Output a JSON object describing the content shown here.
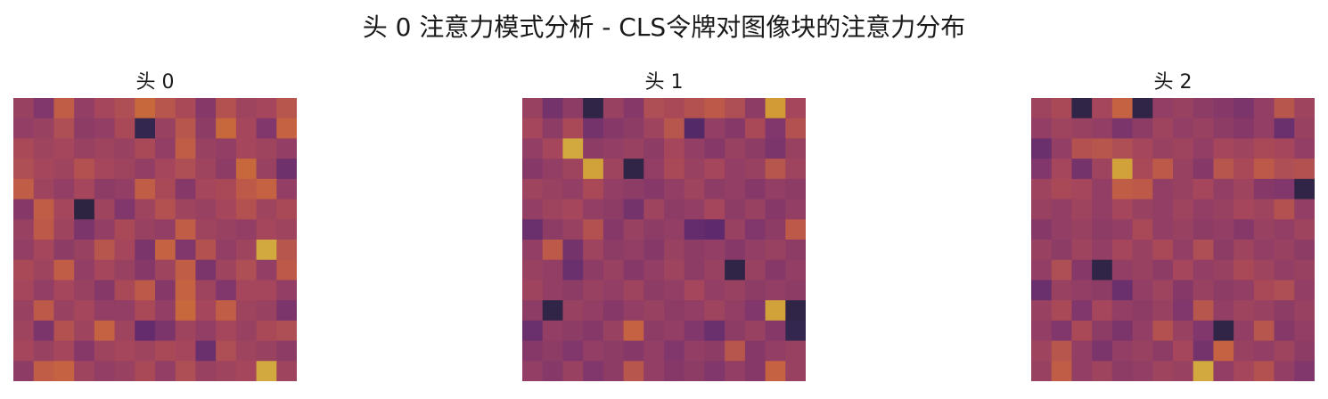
{
  "figure": {
    "title": "头 0 注意力模式分析 - CLS令牌对图像块的注意力分布"
  },
  "chart_data": [
    {
      "type": "heatmap",
      "title": "头 0",
      "colormap": "inferno",
      "grid": false,
      "axes_visible": false,
      "rows": 14,
      "cols": 14,
      "values": [
        [
          0.46,
          0.38,
          0.62,
          0.44,
          0.5,
          0.54,
          0.66,
          0.58,
          0.52,
          0.4,
          0.56,
          0.48,
          0.5,
          0.58
        ],
        [
          0.44,
          0.46,
          0.54,
          0.42,
          0.44,
          0.52,
          0.12,
          0.46,
          0.58,
          0.42,
          0.66,
          0.5,
          0.38,
          0.64
        ],
        [
          0.52,
          0.48,
          0.5,
          0.46,
          0.48,
          0.46,
          0.52,
          0.44,
          0.62,
          0.46,
          0.44,
          0.5,
          0.48,
          0.44
        ],
        [
          0.54,
          0.5,
          0.48,
          0.56,
          0.5,
          0.48,
          0.44,
          0.5,
          0.54,
          0.48,
          0.42,
          0.66,
          0.46,
          0.32
        ],
        [
          0.62,
          0.48,
          0.44,
          0.5,
          0.42,
          0.44,
          0.62,
          0.52,
          0.4,
          0.5,
          0.52,
          0.6,
          0.64,
          0.44
        ],
        [
          0.4,
          0.62,
          0.5,
          0.08,
          0.48,
          0.38,
          0.48,
          0.56,
          0.48,
          0.46,
          0.5,
          0.56,
          0.48,
          0.52
        ],
        [
          0.46,
          0.6,
          0.48,
          0.36,
          0.44,
          0.52,
          0.46,
          0.44,
          0.62,
          0.48,
          0.46,
          0.44,
          0.5,
          0.48
        ],
        [
          0.44,
          0.5,
          0.42,
          0.46,
          0.58,
          0.5,
          0.36,
          0.64,
          0.38,
          0.56,
          0.44,
          0.48,
          0.86,
          0.58
        ],
        [
          0.52,
          0.48,
          0.62,
          0.44,
          0.5,
          0.46,
          0.4,
          0.48,
          0.62,
          0.36,
          0.48,
          0.54,
          0.44,
          0.6
        ],
        [
          0.5,
          0.44,
          0.5,
          0.46,
          0.4,
          0.52,
          0.6,
          0.4,
          0.64,
          0.48,
          0.38,
          0.5,
          0.5,
          0.44
        ],
        [
          0.46,
          0.6,
          0.46,
          0.5,
          0.44,
          0.44,
          0.52,
          0.44,
          0.66,
          0.5,
          0.62,
          0.48,
          0.46,
          0.36
        ],
        [
          0.48,
          0.36,
          0.56,
          0.48,
          0.64,
          0.48,
          0.28,
          0.36,
          0.48,
          0.44,
          0.5,
          0.46,
          0.52,
          0.54
        ],
        [
          0.5,
          0.46,
          0.5,
          0.4,
          0.48,
          0.5,
          0.48,
          0.52,
          0.5,
          0.3,
          0.54,
          0.48,
          0.46,
          0.42
        ],
        [
          0.42,
          0.62,
          0.64,
          0.48,
          0.44,
          0.46,
          0.52,
          0.44,
          0.54,
          0.46,
          0.48,
          0.5,
          0.86,
          0.48
        ]
      ]
    },
    {
      "type": "heatmap",
      "title": "头 1",
      "colormap": "inferno",
      "grid": false,
      "axes_visible": false,
      "rows": 14,
      "cols": 14,
      "values": [
        [
          0.46,
          0.34,
          0.42,
          0.1,
          0.46,
          0.4,
          0.54,
          0.52,
          0.56,
          0.6,
          0.54,
          0.42,
          0.82,
          0.5
        ],
        [
          0.5,
          0.42,
          0.52,
          0.34,
          0.4,
          0.42,
          0.48,
          0.58,
          0.22,
          0.44,
          0.4,
          0.52,
          0.38,
          0.56
        ],
        [
          0.44,
          0.5,
          0.86,
          0.42,
          0.44,
          0.46,
          0.42,
          0.5,
          0.44,
          0.4,
          0.46,
          0.42,
          0.36,
          0.46
        ],
        [
          0.4,
          0.44,
          0.48,
          0.84,
          0.48,
          0.1,
          0.44,
          0.52,
          0.46,
          0.5,
          0.44,
          0.46,
          0.58,
          0.48
        ],
        [
          0.48,
          0.46,
          0.44,
          0.52,
          0.44,
          0.42,
          0.4,
          0.44,
          0.48,
          0.42,
          0.44,
          0.4,
          0.44,
          0.42
        ],
        [
          0.44,
          0.48,
          0.5,
          0.44,
          0.42,
          0.34,
          0.48,
          0.42,
          0.44,
          0.5,
          0.42,
          0.46,
          0.4,
          0.44
        ],
        [
          0.3,
          0.42,
          0.46,
          0.56,
          0.4,
          0.46,
          0.42,
          0.44,
          0.28,
          0.26,
          0.46,
          0.38,
          0.42,
          0.6
        ],
        [
          0.44,
          0.6,
          0.34,
          0.48,
          0.42,
          0.44,
          0.4,
          0.46,
          0.42,
          0.44,
          0.4,
          0.44,
          0.46,
          0.42
        ],
        [
          0.46,
          0.44,
          0.3,
          0.42,
          0.46,
          0.4,
          0.44,
          0.48,
          0.42,
          0.46,
          0.1,
          0.46,
          0.4,
          0.44
        ],
        [
          0.48,
          0.44,
          0.42,
          0.46,
          0.44,
          0.48,
          0.42,
          0.44,
          0.5,
          0.44,
          0.46,
          0.42,
          0.44,
          0.42
        ],
        [
          0.42,
          0.1,
          0.46,
          0.44,
          0.4,
          0.44,
          0.46,
          0.42,
          0.44,
          0.48,
          0.44,
          0.38,
          0.84,
          0.1
        ],
        [
          0.3,
          0.44,
          0.42,
          0.4,
          0.46,
          0.64,
          0.42,
          0.44,
          0.38,
          0.3,
          0.42,
          0.46,
          0.4,
          0.12
        ],
        [
          0.4,
          0.42,
          0.38,
          0.44,
          0.42,
          0.4,
          0.44,
          0.38,
          0.44,
          0.42,
          0.58,
          0.4,
          0.44,
          0.46
        ],
        [
          0.44,
          0.4,
          0.46,
          0.38,
          0.42,
          0.58,
          0.44,
          0.4,
          0.42,
          0.38,
          0.44,
          0.4,
          0.64,
          0.46
        ]
      ]
    },
    {
      "type": "heatmap",
      "title": "头 2",
      "colormap": "inferno",
      "grid": false,
      "axes_visible": false,
      "rows": 14,
      "cols": 14,
      "values": [
        [
          0.48,
          0.52,
          0.1,
          0.5,
          0.64,
          0.1,
          0.44,
          0.46,
          0.42,
          0.4,
          0.36,
          0.44,
          0.58,
          0.48
        ],
        [
          0.44,
          0.48,
          0.46,
          0.44,
          0.36,
          0.42,
          0.48,
          0.44,
          0.46,
          0.42,
          0.4,
          0.44,
          0.3,
          0.46
        ],
        [
          0.3,
          0.44,
          0.56,
          0.58,
          0.54,
          0.5,
          0.46,
          0.48,
          0.44,
          0.5,
          0.48,
          0.52,
          0.5,
          0.44
        ],
        [
          0.38,
          0.5,
          0.34,
          0.48,
          0.84,
          0.52,
          0.6,
          0.46,
          0.4,
          0.58,
          0.52,
          0.6,
          0.54,
          0.56
        ],
        [
          0.48,
          0.52,
          0.5,
          0.44,
          0.62,
          0.6,
          0.44,
          0.46,
          0.5,
          0.44,
          0.48,
          0.4,
          0.38,
          0.1
        ],
        [
          0.46,
          0.44,
          0.48,
          0.44,
          0.5,
          0.46,
          0.44,
          0.48,
          0.44,
          0.46,
          0.5,
          0.48,
          0.56,
          0.44
        ],
        [
          0.4,
          0.44,
          0.46,
          0.42,
          0.44,
          0.52,
          0.44,
          0.46,
          0.42,
          0.44,
          0.4,
          0.46,
          0.44,
          0.48
        ],
        [
          0.46,
          0.42,
          0.48,
          0.44,
          0.5,
          0.46,
          0.52,
          0.44,
          0.54,
          0.42,
          0.48,
          0.44,
          0.46,
          0.42
        ],
        [
          0.44,
          0.54,
          0.4,
          0.1,
          0.44,
          0.46,
          0.42,
          0.5,
          0.44,
          0.46,
          0.52,
          0.48,
          0.44,
          0.46
        ],
        [
          0.3,
          0.46,
          0.44,
          0.42,
          0.3,
          0.44,
          0.48,
          0.4,
          0.46,
          0.42,
          0.44,
          0.52,
          0.54,
          0.44
        ],
        [
          0.46,
          0.52,
          0.38,
          0.5,
          0.44,
          0.42,
          0.46,
          0.38,
          0.58,
          0.44,
          0.48,
          0.46,
          0.42,
          0.46
        ],
        [
          0.44,
          0.38,
          0.52,
          0.42,
          0.36,
          0.44,
          0.56,
          0.46,
          0.38,
          0.1,
          0.44,
          0.58,
          0.4,
          0.44
        ],
        [
          0.48,
          0.58,
          0.44,
          0.36,
          0.44,
          0.46,
          0.42,
          0.5,
          0.34,
          0.64,
          0.46,
          0.44,
          0.48,
          0.42
        ],
        [
          0.46,
          0.62,
          0.44,
          0.48,
          0.42,
          0.44,
          0.48,
          0.46,
          0.86,
          0.44,
          0.5,
          0.56,
          0.44,
          0.38
        ]
      ]
    }
  ]
}
